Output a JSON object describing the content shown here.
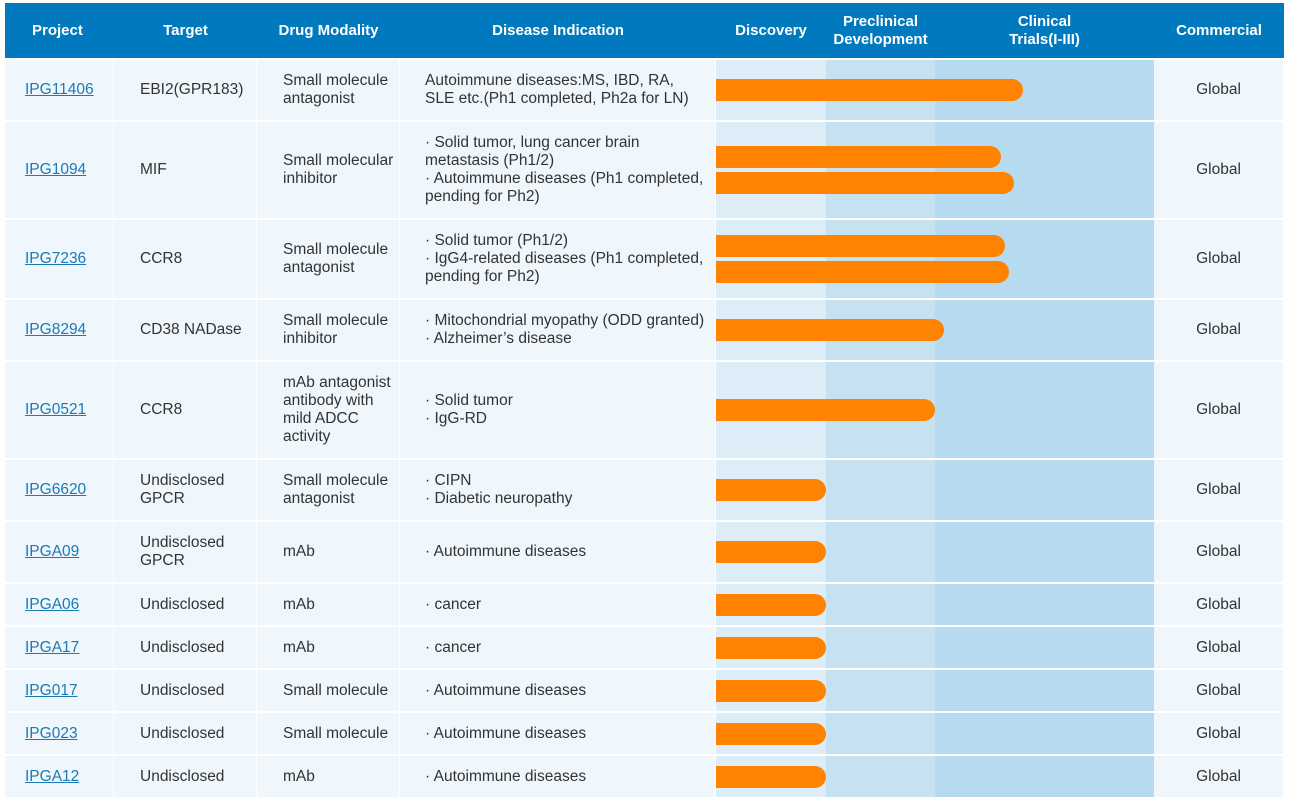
{
  "headers": {
    "project": "Project",
    "target": "Target",
    "modality": "Drug Modality",
    "indication": "Disease Indication",
    "discovery": "Discovery",
    "preclinical": "Preclinical Development",
    "clinical": "Clinical Trials(I-III)",
    "commercial": "Commercial"
  },
  "colors": {
    "header": "#0179bf",
    "bar": "#ff8200",
    "discovery_bg": "#dcedf8",
    "preclinical_bg": "#c6e2f1",
    "clinical_bg": "#b7dbee",
    "cell_bg": "#eff7fc"
  },
  "rows": [
    {
      "project": "IPG11406",
      "target": "EBI2(GPR183)",
      "modality": [
        "Small molecule",
        "antagonist"
      ],
      "indication": [
        "Autoimmune diseases:MS, IBD, RA,",
        "SLE etc.(Ph1 completed, Ph2a for LN)"
      ],
      "progress": [
        0.7
      ],
      "commercial": "Global"
    },
    {
      "project": "IPG1094",
      "target": "MIF",
      "modality": [
        "Small molecular",
        "inhibitor"
      ],
      "indication": [
        "· Solid tumor, lung cancer brain",
        "metastasis (Ph1/2)",
        "· Autoimmune diseases (Ph1 completed,",
        "pending for Ph2)"
      ],
      "progress": [
        0.65,
        0.68
      ],
      "commercial": "Global"
    },
    {
      "project": "IPG7236",
      "target": "CCR8",
      "modality": [
        "Small molecule",
        "antagonist"
      ],
      "indication": [
        "· Solid tumor (Ph1/2)",
        "· IgG4-related diseases (Ph1 completed,",
        "pending for Ph2)"
      ],
      "progress": [
        0.66,
        0.67
      ],
      "commercial": "Global"
    },
    {
      "project": "IPG8294",
      "target": "CD38 NADase",
      "modality": [
        "Small molecule",
        "inhibitor"
      ],
      "indication": [
        "· Mitochondrial myopathy (ODD granted)",
        "· Alzheimer’s disease"
      ],
      "progress": [
        0.52
      ],
      "commercial": "Global"
    },
    {
      "project": "IPG0521",
      "target": "CCR8",
      "modality": [
        "mAb antagonist",
        "antibody with",
        "mild ADCC",
        "activity"
      ],
      "indication": [
        "· Solid tumor",
        "· IgG-RD"
      ],
      "progress": [
        0.5
      ],
      "commercial": "Global"
    },
    {
      "project": "IPG6620",
      "target": [
        "Undisclosed",
        "GPCR"
      ],
      "modality": [
        "Small molecule",
        "antagonist"
      ],
      "indication": [
        "· CIPN",
        "· Diabetic neuropathy"
      ],
      "progress": [
        0.25
      ],
      "commercial": "Global"
    },
    {
      "project": "IPGA09",
      "target": [
        "Undisclosed",
        "GPCR"
      ],
      "modality": [
        "mAb"
      ],
      "indication": [
        "· Autoimmune diseases"
      ],
      "progress": [
        0.25
      ],
      "commercial": "Global"
    },
    {
      "project": "IPGA06",
      "target": "Undisclosed",
      "modality": [
        "mAb"
      ],
      "indication": [
        "· cancer"
      ],
      "progress": [
        0.25
      ],
      "commercial": "Global"
    },
    {
      "project": "IPGA17",
      "target": "Undisclosed",
      "modality": [
        "mAb"
      ],
      "indication": [
        "· cancer"
      ],
      "progress": [
        0.25
      ],
      "commercial": "Global"
    },
    {
      "project": "IPG017",
      "target": "Undisclosed",
      "modality": [
        "Small molecule"
      ],
      "indication": [
        "· Autoimmune diseases"
      ],
      "progress": [
        0.25
      ],
      "commercial": "Global"
    },
    {
      "project": "IPG023",
      "target": "Undisclosed",
      "modality": [
        "Small molecule"
      ],
      "indication": [
        "· Autoimmune diseases"
      ],
      "progress": [
        0.25
      ],
      "commercial": "Global"
    },
    {
      "project": "IPGA12",
      "target": "Undisclosed",
      "modality": [
        "mAb"
      ],
      "indication": [
        "· Autoimmune diseases"
      ],
      "progress": [
        0.25
      ],
      "commercial": "Global"
    }
  ]
}
